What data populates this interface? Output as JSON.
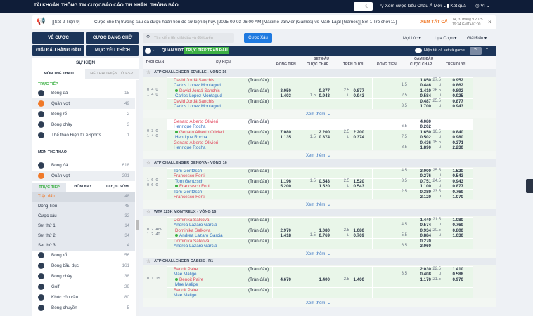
{
  "topnav": {
    "items": [
      "TÀI KHOẢN",
      "THÔNG TIN CƯỢC",
      "BÁO CÁO",
      "TIN NHẮN",
      "THÔNG BÁO"
    ],
    "odds_view": "Xem cược kiểu Châu Á Mới",
    "results": "Kết quả",
    "language": "VI"
  },
  "announcement": {
    "tag": "][Set 2 Trận 9]",
    "text": "Cược cho thị trường sau đã được hoàn tiền do sự kiện bị hủy. [2025-09-03 06:00 AM][Maxime Janvier (Games)-vs-Mark Lajal (Games)][Set 1 Trò chơi 11]",
    "view_all": "XEM TẤT CẢ",
    "date": "T4, 3 Tháng 9 2025",
    "time": "19:34 GMT+07:00"
  },
  "left": {
    "buttons": [
      "VÉ CƯỢC",
      "CƯỢC ĐANG CHỜ",
      "GIẢI ĐẤU HÀNG ĐẦU",
      "MỤC YÊU THÍCH"
    ],
    "events_title": "SỰ KIỆN",
    "tabs": [
      "MÔN THỂ THAO",
      "THỂ THAO ĐIỆN TỬ ESP..."
    ],
    "live_label": "TRỰC TIẾP",
    "sports_label": "MÔN THỂ THAO",
    "live_items": [
      {
        "label": "Bóng đá",
        "count": "15",
        "icon": "soccer-ball"
      },
      {
        "label": "Quần vợt",
        "count": "49",
        "icon": "tennis-ball",
        "active": true
      },
      {
        "label": "Bóng rổ",
        "count": "2",
        "icon": "basketball"
      },
      {
        "label": "Bóng chày",
        "count": "3",
        "icon": "baseball"
      },
      {
        "label": "Thể thao Điện tử eSports",
        "count": "1",
        "icon": "headset"
      }
    ],
    "sport_items": [
      {
        "label": "Bóng đá",
        "count": "618",
        "icon": "soccer-ball"
      },
      {
        "label": "Quần vợt",
        "count": "291",
        "icon": "tennis-ball",
        "active": true
      }
    ],
    "sub_tabs": [
      "TRỰC TIẾP",
      "HÔM NAY",
      "CƯỢC SỚM"
    ],
    "sub_items": [
      {
        "label": "Trận đấu",
        "count": "48",
        "active": true
      },
      {
        "label": "Dòng Tiền",
        "count": "48"
      },
      {
        "label": "Cược xâu",
        "count": "32"
      },
      {
        "label": "Set thứ 1",
        "count": "14"
      },
      {
        "label": "Set thứ 2",
        "count": "34"
      },
      {
        "label": "Set thứ 3",
        "count": "4"
      }
    ],
    "more_items": [
      {
        "label": "Bóng rổ",
        "count": "56",
        "icon": "basketball"
      },
      {
        "label": "Bóng bầu dục",
        "count": "161",
        "icon": "rugby-ball"
      },
      {
        "label": "Bóng chày",
        "count": "38",
        "icon": "baseball"
      },
      {
        "label": "Golf",
        "count": "29",
        "icon": "golf"
      },
      {
        "label": "Khúc côn cầu",
        "count": "80",
        "icon": "hockey-puck"
      },
      {
        "label": "Bóng chuyền",
        "count": "5",
        "icon": "volleyball"
      }
    ]
  },
  "search": {
    "placeholder": "Tìm kiếm tên giải đấu và đội tuyển",
    "parlay": "Cược Xâu"
  },
  "filters": [
    "Mọi Lúc",
    "Lựa Chọn",
    "Giải Đấu"
  ],
  "bar": {
    "sport": "QUẦN VỢT",
    "live_badge": "TRỰC TIẾP TRẬN ĐẤU",
    "toggle_label": "Hiện tất cả set và game"
  },
  "columns": {
    "time": "THỜI GIAN",
    "event": "SỰ KIỆN",
    "set_group": "SET ĐẤU",
    "game_group": "GAME ĐẤU",
    "ml": "ĐỒNG TIỀN",
    "hdp": "CƯỢC CHẤP",
    "ou": "TRÊN DƯỚI"
  },
  "match_label": "(Trận đấu)",
  "more_label": "Xem thêm",
  "matches": [
    {
      "league": "ATP CHALLENGER SEVILLE - VÒNG 16",
      "home": "David Jordá Sanchis",
      "away": "Carlos Lopez Montagud",
      "red": "home",
      "serve": "home",
      "score": [
        "0  4  0",
        "1  4  0"
      ],
      "set": {
        "ml": [
          "3.050",
          "1.403"
        ],
        "hdp": [
          [
            "",
            "0.877"
          ],
          [
            "1.5",
            "0.943"
          ]
        ],
        "ou": [
          [
            "2.5",
            "0.877"
          ],
          [
            "u",
            "0.943"
          ]
        ]
      },
      "games": [
        {
          "hdp": [
            [
              "",
              "1.850"
            ],
            [
              "1.5",
              "0.446"
            ]
          ],
          "ou": [
            [
              "27.5",
              "0.952"
            ],
            [
              "u",
              "0.862"
            ]
          ]
        },
        {
          "hdp": [
            [
              "",
              "1.410"
            ],
            [
              "2.5",
              "0.584"
            ]
          ],
          "ou": [
            [
              "26.5",
              "0.892"
            ],
            [
              "u",
              "0.925"
            ]
          ]
        },
        {
          "hdp": [
            [
              "",
              "0.487"
            ],
            [
              "3.5",
              "1.700"
            ]
          ],
          "ou": [
            [
              "25.5",
              "0.877"
            ],
            [
              "u",
              "0.943"
            ]
          ]
        }
      ]
    },
    {
      "league": "",
      "home": "Genaro Alberto Olivieri",
      "away": "Henrique Rocha",
      "red": "home",
      "serve": "home",
      "score": [
        "0  3  0",
        "1  4  0"
      ],
      "set": {
        "ml": [
          "7.080",
          "1.135"
        ],
        "hdp": [
          [
            "",
            "2.200"
          ],
          [
            "1.5",
            "0.374"
          ]
        ],
        "ou": [
          [
            "2.5",
            "2.200"
          ],
          [
            "u",
            "0.374"
          ]
        ]
      },
      "games": [
        {
          "hdp": [
            [
              "",
              "4.080"
            ],
            [
              "6.5",
              "0.202"
            ]
          ],
          "ou": [
            [
              "",
              ""
            ],
            [
              "",
              ""
            ]
          ],
          "white": true
        },
        {
          "hdp": [
            [
              "",
              "1.650"
            ],
            [
              "7.5",
              "0.502"
            ]
          ],
          "ou": [
            [
              "16.5",
              "0.840"
            ],
            [
              "u",
              "0.980"
            ]
          ]
        },
        {
          "hdp": [
            [
              "",
              "0.436"
            ],
            [
              "8.5",
              "1.890"
            ]
          ],
          "ou": [
            [
              "15.5",
              "0.371"
            ],
            [
              "u",
              "2.230"
            ]
          ]
        }
      ]
    },
    {
      "league": "ATP CHALLENGER GENOVA - VÒNG 16",
      "home": "Tom Gentzsch",
      "away": "Francesco Forti",
      "red": "away",
      "serve": "away",
      "score": [
        "1  6  0",
        "0  6  0"
      ],
      "set": {
        "ml": [
          "1.196",
          "5.200"
        ],
        "hdp": [
          [
            "1.5",
            "0.543"
          ],
          [
            "",
            "1.520"
          ]
        ],
        "ou": [
          [
            "2.5",
            "1.520"
          ],
          [
            "u",
            "0.543"
          ]
        ]
      },
      "games": [
        {
          "hdp": [
            [
              "4.5",
              "3.000"
            ],
            [
              "",
              "0.276"
            ]
          ],
          "ou": [
            [
              "25.5",
              "1.520"
            ],
            [
              "u",
              "0.543"
            ]
          ]
        },
        {
          "hdp": [
            [
              "3.5",
              "0.751"
            ],
            [
              "",
              "1.100"
            ]
          ],
          "ou": [
            [
              "24.5",
              "0.943"
            ],
            [
              "u",
              "0.877"
            ]
          ]
        },
        {
          "hdp": [
            [
              "2.5",
              "0.389"
            ],
            [
              "",
              "2.120"
            ]
          ],
          "ou": [
            [
              "23.5",
              "0.769"
            ],
            [
              "u",
              "1.070"
            ]
          ]
        }
      ]
    },
    {
      "league": "WTA 125K MONTREUX - VÒNG 16",
      "home": "Dominika Salkova",
      "away": "Andrea Lazaro Garcia",
      "red": "home",
      "serve": "away",
      "score": [
        "0  2  Adv",
        "1  2  40"
      ],
      "set": {
        "ml": [
          "2.970",
          "1.418"
        ],
        "hdp": [
          [
            "",
            "1.080"
          ],
          [
            "1.5",
            "0.769"
          ]
        ],
        "ou": [
          [
            "2.5",
            "1.080"
          ],
          [
            "u",
            "0.769"
          ]
        ]
      },
      "games": [
        {
          "hdp": [
            [
              "",
              "1.440"
            ],
            [
              "4.5",
              "0.574"
            ]
          ],
          "ou": [
            [
              "21.5",
              "1.080"
            ],
            [
              "u",
              "0.769"
            ]
          ]
        },
        {
          "hdp": [
            [
              "",
              "0.934"
            ],
            [
              "5.5",
              "0.884"
            ]
          ],
          "ou": [
            [
              "20.5",
              "0.800"
            ],
            [
              "u",
              "1.030"
            ]
          ]
        },
        {
          "hdp": [
            [
              "",
              "0.270"
            ],
            [
              "6.5",
              "3.060"
            ]
          ],
          "ou": [
            [
              "",
              ""
            ],
            [
              "",
              ""
            ]
          ]
        }
      ]
    },
    {
      "league": "ATP CHALLENGER CASSIS - R1",
      "home": "Benoit Paire",
      "away": "Mae Malige",
      "red": "home",
      "serve": "home",
      "score": [
        "0  1  15",
        ""
      ],
      "set": {
        "ml": [
          "4.670",
          ""
        ],
        "hdp": [
          [
            "",
            "1.400"
          ],
          [
            "",
            ""
          ]
        ],
        "ou": [
          [
            "2.5",
            "1.400"
          ],
          [
            "",
            ""
          ]
        ]
      },
      "games": [
        {
          "hdp": [
            [
              "",
              "2.030"
            ],
            [
              "3.5",
              "0.408"
            ]
          ],
          "ou": [
            [
              "22.5",
              "1.410"
            ],
            [
              "u",
              "0.588"
            ]
          ]
        },
        {
          "hdp": [
            [
              "",
              "1.170"
            ],
            [
              "",
              ""
            ]
          ],
          "ou": [
            [
              "21.5",
              "0.970"
            ],
            [
              "",
              ""
            ]
          ]
        },
        {
          "hdp": [
            [
              "",
              ""
            ],
            [
              "",
              ""
            ]
          ],
          "ou": [
            [
              "",
              ""
            ],
            [
              "",
              ""
            ]
          ]
        }
      ]
    }
  ],
  "colors": {
    "nav": "#0f1d38",
    "panel": "#1c3559",
    "accent_orange": "#f07a2a",
    "live_green": "#3cb043",
    "team_red": "#e0435a",
    "team_blue": "#2d6cbf",
    "button_blue": "#1f7ae0"
  }
}
